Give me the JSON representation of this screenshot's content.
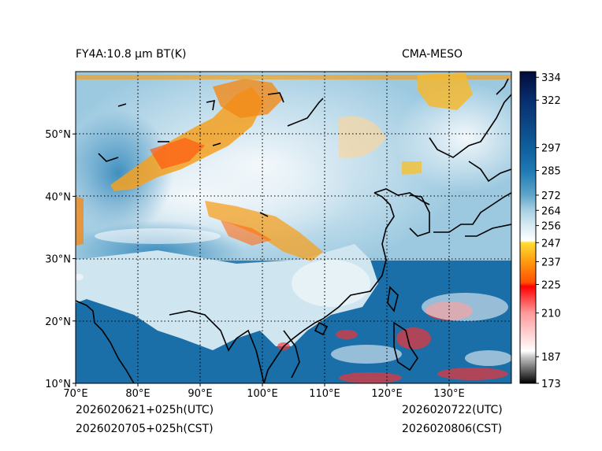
{
  "header": {
    "title": "FY4A:10.8 µm BT(K)",
    "model": "CMA-MESO"
  },
  "footer": {
    "init_utc": "2026020621+025h(UTC)",
    "init_cst": "2026020705+025h(CST)",
    "valid_utc": "2026020722(UTC)",
    "valid_cst": "2026020806(CST)"
  },
  "map": {
    "lon_range": [
      70,
      140
    ],
    "lat_range": [
      10,
      60
    ],
    "lon_ticks": [
      70,
      80,
      90,
      100,
      110,
      120,
      130
    ],
    "lon_labels": [
      "70°E",
      "80°E",
      "90°E",
      "100°E",
      "110°E",
      "120°E",
      "130°E"
    ],
    "lat_ticks": [
      10,
      20,
      30,
      40,
      50
    ],
    "lat_labels": [
      "10°N",
      "20°N",
      "30°N",
      "40°N",
      "50°N"
    ],
    "gridlines": "dotted"
  },
  "colorbar": {
    "min": 173,
    "max": 337,
    "tick_values": [
      173,
      187,
      210,
      225,
      237,
      247,
      256,
      264,
      272,
      285,
      297,
      322,
      334
    ],
    "tick_labels": [
      "173",
      "187",
      "210",
      "225",
      "237",
      "247",
      "256",
      "264",
      "272",
      "285",
      "297",
      "322",
      "334"
    ],
    "stops": [
      {
        "value": 173,
        "color": "#000000"
      },
      {
        "value": 187,
        "color": "#c8c8c8"
      },
      {
        "value": 190,
        "color": "#ffffff"
      },
      {
        "value": 210,
        "color": "#ff9a9a"
      },
      {
        "value": 224,
        "color": "#ff0000"
      },
      {
        "value": 226,
        "color": "#ff5000"
      },
      {
        "value": 237,
        "color": "#ff9a10"
      },
      {
        "value": 247,
        "color": "#ffdd33"
      },
      {
        "value": 248,
        "color": "#ffffff"
      },
      {
        "value": 256,
        "color": "#d8ebf3"
      },
      {
        "value": 264,
        "color": "#a8d0e3"
      },
      {
        "value": 272,
        "color": "#5fa6c8"
      },
      {
        "value": 285,
        "color": "#1e78b4"
      },
      {
        "value": 297,
        "color": "#0f5f9c"
      },
      {
        "value": 322,
        "color": "#082e6e"
      },
      {
        "value": 337,
        "color": "#020a3a"
      }
    ]
  },
  "colors": {
    "sea": "#1a6fa8",
    "land_warm": "#7fb9d6",
    "land_cool": "#d6e9f2",
    "cold_cloud": "#f5a020",
    "very_cold": "#ff3030",
    "coast": "#000000"
  }
}
